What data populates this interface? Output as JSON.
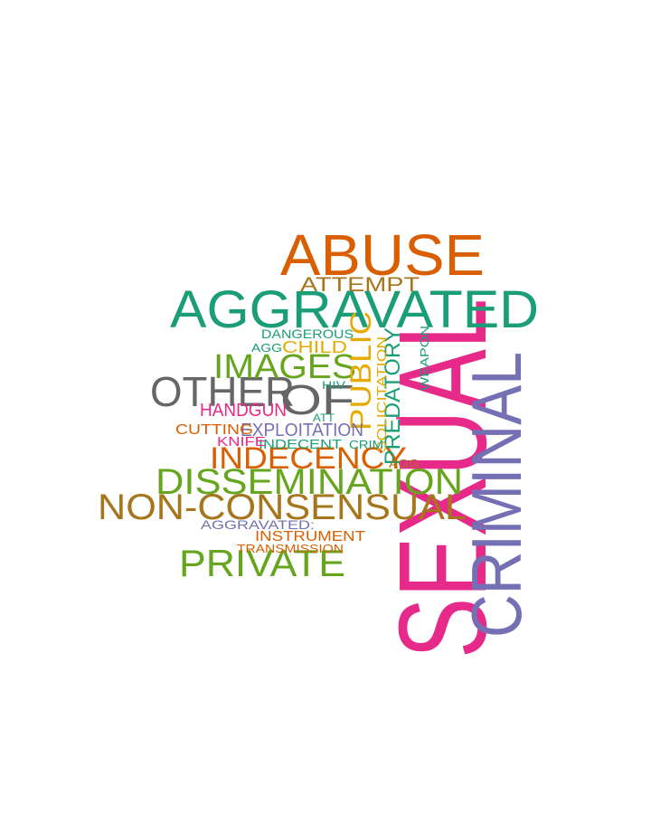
{
  "word_cloud": {
    "palette": {
      "orange": "#d95f02",
      "teal": "#1b9e77",
      "purple": "#7570b3",
      "magenta": "#e7298a",
      "green": "#66a61e",
      "gold": "#e6ab02",
      "brown": "#a6761d",
      "gray": "#666666"
    },
    "words": [
      {
        "text": "SEXUAL",
        "color": "#e7298a",
        "vertical": true
      },
      {
        "text": "CRIMINAL",
        "color": "#7570b3",
        "vertical": true
      },
      {
        "text": "ABUSE",
        "color": "#d95f02",
        "vertical": false
      },
      {
        "text": "AGGRAVATED",
        "color": "#1b9e77",
        "vertical": false
      },
      {
        "text": "NON-CONSENSUAL",
        "color": "#a6761d",
        "vertical": false
      },
      {
        "text": "DISSEMINATION",
        "color": "#66a61e",
        "vertical": false
      },
      {
        "text": "OTHER",
        "color": "#666666",
        "vertical": false
      },
      {
        "text": "PRIVATE",
        "color": "#66a61e",
        "vertical": false
      },
      {
        "text": "INDECENCY",
        "color": "#d95f02",
        "vertical": false
      },
      {
        "text": "IMAGES",
        "color": "#66a61e",
        "vertical": false
      },
      {
        "text": "OF",
        "color": "#666666",
        "vertical": false
      },
      {
        "text": "PUBLIC",
        "color": "#e6ab02",
        "vertical": true
      },
      {
        "text": "PREDATORY",
        "color": "#1b9e77",
        "vertical": true
      },
      {
        "text": "ATTEMPT",
        "color": "#a6761d",
        "vertical": false
      },
      {
        "text": "-",
        "color": "#e7298a",
        "vertical": false
      },
      {
        "text": "SOLICITATION",
        "color": "#e6ab02",
        "vertical": true
      },
      {
        "text": "EXPLOITATION",
        "color": "#7570b3",
        "vertical": false
      },
      {
        "text": "HANDGUN",
        "color": "#e7298a",
        "vertical": false
      },
      {
        "text": "CHILD",
        "color": "#e6ab02",
        "vertical": false
      },
      {
        "text": "CUTTING",
        "color": "#d95f02",
        "vertical": false
      },
      {
        "text": "INSTRUMENT",
        "color": "#d95f02",
        "vertical": false
      },
      {
        "text": "AGGRAVATED:",
        "color": "#7570b3",
        "vertical": false
      },
      {
        "text": "INDECENT",
        "color": "#1b9e77",
        "vertical": false
      },
      {
        "text": "KNIFE",
        "color": "#e7298a",
        "vertical": false
      },
      {
        "text": "DANGEROUS",
        "color": "#1b9e77",
        "vertical": false
      },
      {
        "text": "TRANSMISSION",
        "color": "#d95f02",
        "vertical": false
      },
      {
        "text": "WEAPON",
        "color": "#1b9e77",
        "vertical": true
      },
      {
        "text": "CRIM",
        "color": "#1b9e77",
        "vertical": false
      },
      {
        "text": "AGG",
        "color": "#1b9e77",
        "vertical": false
      },
      {
        "text": "AGG",
        "color": "#a6761d",
        "vertical": false
      },
      {
        "text": "HIV",
        "color": "#1b9e77",
        "vertical": false
      },
      {
        "text": "ATT",
        "color": "#1b9e77",
        "vertical": false
      }
    ]
  }
}
